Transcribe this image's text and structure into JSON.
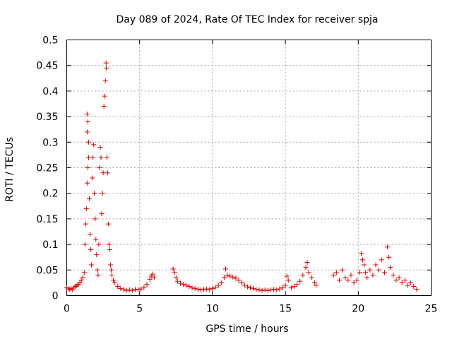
{
  "chart_data": {
    "type": "scatter",
    "title": "Day 089 of 2024, Rate Of TEC Index for receiver spja",
    "xlabel": "GPS time / hours",
    "ylabel": "ROTI / TECUs",
    "xlim": [
      0,
      25
    ],
    "ylim": [
      0,
      0.5
    ],
    "x_ticks": [
      0,
      5,
      10,
      15,
      20,
      25
    ],
    "x_tick_labels": [
      "0",
      "5",
      "10",
      "15",
      "20",
      "25"
    ],
    "y_ticks": [
      0,
      0.05,
      0.1,
      0.15,
      0.2,
      0.25,
      0.3,
      0.35,
      0.4,
      0.45,
      0.5
    ],
    "y_tick_labels": [
      "0",
      "0.05",
      "0.1",
      "0.15",
      "0.2",
      "0.25",
      "0.3",
      "0.35",
      "0.4",
      "0.45",
      "0.5"
    ],
    "grid": true,
    "marker": "+",
    "color": "#e00000",
    "series": [
      {
        "name": "ROTI",
        "points": [
          [
            0.0,
            0.015
          ],
          [
            0.1,
            0.013
          ],
          [
            0.2,
            0.012
          ],
          [
            0.3,
            0.014
          ],
          [
            0.4,
            0.011
          ],
          [
            0.5,
            0.016
          ],
          [
            0.6,
            0.018
          ],
          [
            0.7,
            0.02
          ],
          [
            0.8,
            0.022
          ],
          [
            0.9,
            0.025
          ],
          [
            1.0,
            0.03
          ],
          [
            1.1,
            0.035
          ],
          [
            1.2,
            0.045
          ],
          [
            1.25,
            0.1
          ],
          [
            1.3,
            0.14
          ],
          [
            1.35,
            0.17
          ],
          [
            1.4,
            0.22
          ],
          [
            1.45,
            0.25
          ],
          [
            1.5,
            0.27
          ],
          [
            1.5,
            0.3
          ],
          [
            1.4,
            0.32
          ],
          [
            1.45,
            0.34
          ],
          [
            1.4,
            0.355
          ],
          [
            1.55,
            0.19
          ],
          [
            1.6,
            0.12
          ],
          [
            1.65,
            0.09
          ],
          [
            1.7,
            0.06
          ],
          [
            1.75,
            0.23
          ],
          [
            1.8,
            0.27
          ],
          [
            1.85,
            0.295
          ],
          [
            1.9,
            0.2
          ],
          [
            1.95,
            0.15
          ],
          [
            2.0,
            0.11
          ],
          [
            2.05,
            0.08
          ],
          [
            2.1,
            0.05
          ],
          [
            2.15,
            0.04
          ],
          [
            2.2,
            0.1
          ],
          [
            2.25,
            0.25
          ],
          [
            2.3,
            0.29
          ],
          [
            2.35,
            0.27
          ],
          [
            2.4,
            0.16
          ],
          [
            2.45,
            0.2
          ],
          [
            2.5,
            0.24
          ],
          [
            2.55,
            0.37
          ],
          [
            2.6,
            0.39
          ],
          [
            2.65,
            0.42
          ],
          [
            2.7,
            0.455
          ],
          [
            2.72,
            0.445
          ],
          [
            2.75,
            0.27
          ],
          [
            2.8,
            0.24
          ],
          [
            2.85,
            0.14
          ],
          [
            2.9,
            0.1
          ],
          [
            2.95,
            0.09
          ],
          [
            3.0,
            0.06
          ],
          [
            3.05,
            0.05
          ],
          [
            3.1,
            0.04
          ],
          [
            3.2,
            0.03
          ],
          [
            3.3,
            0.025
          ],
          [
            3.5,
            0.018
          ],
          [
            3.7,
            0.014
          ],
          [
            3.9,
            0.012
          ],
          [
            4.1,
            0.01
          ],
          [
            4.3,
            0.011
          ],
          [
            4.5,
            0.01
          ],
          [
            4.7,
            0.012
          ],
          [
            4.9,
            0.011
          ],
          [
            5.1,
            0.013
          ],
          [
            5.3,
            0.016
          ],
          [
            5.5,
            0.022
          ],
          [
            5.7,
            0.032
          ],
          [
            5.8,
            0.038
          ],
          [
            5.9,
            0.042
          ],
          [
            6.0,
            0.035
          ],
          [
            7.3,
            0.052
          ],
          [
            7.4,
            0.045
          ],
          [
            7.5,
            0.035
          ],
          [
            7.6,
            0.028
          ],
          [
            7.8,
            0.024
          ],
          [
            8.0,
            0.022
          ],
          [
            8.2,
            0.02
          ],
          [
            8.4,
            0.018
          ],
          [
            8.6,
            0.015
          ],
          [
            8.8,
            0.014
          ],
          [
            9.0,
            0.012
          ],
          [
            9.2,
            0.011
          ],
          [
            9.4,
            0.012
          ],
          [
            9.6,
            0.013
          ],
          [
            9.8,
            0.012
          ],
          [
            10.0,
            0.014
          ],
          [
            10.2,
            0.016
          ],
          [
            10.4,
            0.02
          ],
          [
            10.6,
            0.025
          ],
          [
            10.8,
            0.035
          ],
          [
            10.9,
            0.052
          ],
          [
            11.0,
            0.04
          ],
          [
            11.2,
            0.038
          ],
          [
            11.4,
            0.036
          ],
          [
            11.6,
            0.034
          ],
          [
            11.8,
            0.03
          ],
          [
            12.0,
            0.025
          ],
          [
            12.2,
            0.02
          ],
          [
            12.4,
            0.017
          ],
          [
            12.6,
            0.015
          ],
          [
            12.8,
            0.014
          ],
          [
            13.0,
            0.012
          ],
          [
            13.2,
            0.011
          ],
          [
            13.4,
            0.01
          ],
          [
            13.6,
            0.011
          ],
          [
            13.8,
            0.01
          ],
          [
            14.0,
            0.011
          ],
          [
            14.2,
            0.012
          ],
          [
            14.4,
            0.011
          ],
          [
            14.6,
            0.013
          ],
          [
            14.8,
            0.015
          ],
          [
            15.0,
            0.02
          ],
          [
            15.1,
            0.038
          ],
          [
            15.2,
            0.03
          ],
          [
            15.4,
            0.015
          ],
          [
            15.6,
            0.018
          ],
          [
            15.8,
            0.022
          ],
          [
            16.0,
            0.028
          ],
          [
            16.2,
            0.04
          ],
          [
            16.4,
            0.055
          ],
          [
            16.5,
            0.065
          ],
          [
            16.6,
            0.045
          ],
          [
            16.8,
            0.035
          ],
          [
            17.0,
            0.025
          ],
          [
            17.1,
            0.02
          ],
          [
            18.3,
            0.04
          ],
          [
            18.5,
            0.045
          ],
          [
            18.7,
            0.03
          ],
          [
            18.9,
            0.05
          ],
          [
            19.1,
            0.035
          ],
          [
            19.3,
            0.03
          ],
          [
            19.5,
            0.04
          ],
          [
            19.7,
            0.025
          ],
          [
            19.9,
            0.03
          ],
          [
            20.1,
            0.045
          ],
          [
            20.2,
            0.082
          ],
          [
            20.3,
            0.07
          ],
          [
            20.4,
            0.06
          ],
          [
            20.5,
            0.045
          ],
          [
            20.6,
            0.035
          ],
          [
            20.8,
            0.05
          ],
          [
            21.0,
            0.04
          ],
          [
            21.2,
            0.06
          ],
          [
            21.4,
            0.05
          ],
          [
            21.6,
            0.07
          ],
          [
            21.8,
            0.045
          ],
          [
            22.0,
            0.095
          ],
          [
            22.1,
            0.075
          ],
          [
            22.2,
            0.055
          ],
          [
            22.4,
            0.04
          ],
          [
            22.6,
            0.03
          ],
          [
            22.8,
            0.035
          ],
          [
            23.0,
            0.025
          ],
          [
            23.2,
            0.03
          ],
          [
            23.4,
            0.02
          ],
          [
            23.6,
            0.025
          ],
          [
            23.8,
            0.018
          ],
          [
            24.0,
            0.012
          ]
        ]
      }
    ]
  }
}
